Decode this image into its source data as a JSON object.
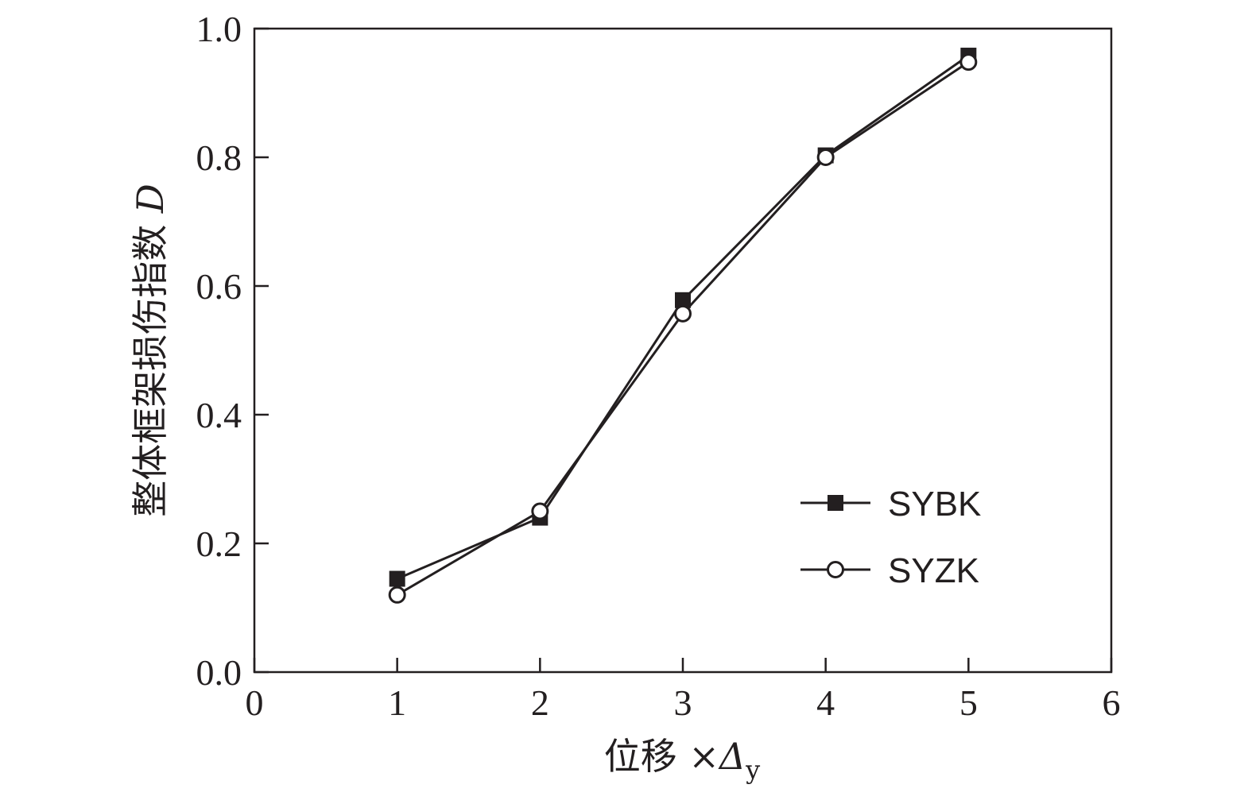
{
  "chart_data": {
    "type": "line",
    "title": "",
    "xlabel": {
      "main": "位移 ×",
      "symbol": "Δ",
      "subscript": "y"
    },
    "ylabel": {
      "main": "整体框架损伤指数 ",
      "symbol": "D"
    },
    "xlim": [
      0,
      6
    ],
    "ylim": [
      0.0,
      1.0
    ],
    "xticks": [
      0,
      1,
      2,
      3,
      4,
      5,
      6
    ],
    "xtick_labels": [
      "0",
      "1",
      "2",
      "3",
      "4",
      "5",
      "6"
    ],
    "yticks": [
      0.0,
      0.2,
      0.4,
      0.6,
      0.8,
      1.0
    ],
    "ytick_labels": [
      "0.0",
      "0.2",
      "0.4",
      "0.6",
      "0.8",
      "1.0"
    ],
    "grid": false,
    "legend_position": "bottom-right",
    "x": [
      1,
      2,
      3,
      4,
      5
    ],
    "series": [
      {
        "name": "SYBK",
        "marker": "filled-square",
        "values": [
          0.145,
          0.24,
          0.578,
          0.803,
          0.958
        ]
      },
      {
        "name": "SYZK",
        "marker": "open-circle",
        "values": [
          0.12,
          0.25,
          0.557,
          0.8,
          0.948
        ]
      }
    ],
    "colors": {
      "line": "#231f20",
      "marker_fill": "#231f20",
      "marker_open_fill": "#ffffff"
    }
  }
}
